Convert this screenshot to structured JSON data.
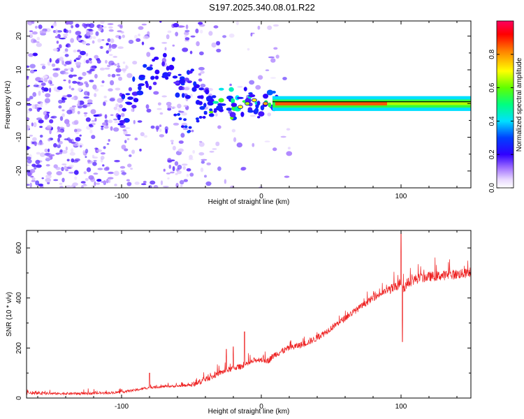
{
  "title": "S197.2025.340.08.01.R22",
  "chart_data": [
    {
      "type": "heatmap",
      "xlabel": "Height of straight line (km)",
      "ylabel": "Frequency (Hz)",
      "xlim": [
        -168,
        150
      ],
      "ylim": [
        -25,
        24.5
      ],
      "x_ticks": [
        -100,
        0,
        100
      ],
      "y_ticks": [
        -20,
        -10,
        0,
        10,
        20
      ],
      "colorbar": {
        "label": "Normalized spectral amplitude",
        "range": [
          0,
          1
        ],
        "ticks": [
          0.0,
          0.2,
          0.4,
          0.6,
          0.8
        ],
        "tick_labels": [
          "0.0",
          "0.2",
          "0.4",
          "0.6",
          "0.8"
        ],
        "colors": [
          "#ffffff",
          "#e8d8ff",
          "#a070ff",
          "#6a18f0",
          "#1a10ff",
          "#00d8ff",
          "#00ff80",
          "#80ff00",
          "#ffff00",
          "#ff9000",
          "#ff0000",
          "#ff0060"
        ]
      },
      "features": {
        "carrier_start_km": 10,
        "carrier_end_km": 150,
        "carrier_freq_hz": 0,
        "carrier_amplitude": 0.85,
        "transition_start_km": -100,
        "noise_region_end_km": -50
      }
    },
    {
      "type": "line",
      "xlabel": "Height of straight line (km)",
      "ylabel": "SNR (10 * v/v)",
      "xlim": [
        -168,
        150
      ],
      "ylim": [
        0,
        670
      ],
      "x_ticks": [
        -100,
        0,
        100
      ],
      "y_ticks": [
        0,
        200,
        400,
        600
      ],
      "line_color": "#ee2222",
      "series": [
        {
          "name": "SNR",
          "x": [
            -168,
            -150,
            -130,
            -110,
            -100,
            -90,
            -80,
            -70,
            -60,
            -50,
            -45,
            -40,
            -35,
            -30,
            -25,
            -20,
            -15,
            -10,
            -5,
            0,
            5,
            10,
            20,
            30,
            40,
            50,
            60,
            70,
            80,
            90,
            95,
            98,
            100,
            102,
            105,
            110,
            120,
            130,
            140,
            150
          ],
          "y": [
            20,
            18,
            18,
            20,
            24,
            32,
            42,
            46,
            48,
            52,
            62,
            75,
            85,
            100,
            110,
            120,
            125,
            135,
            150,
            155,
            150,
            175,
            200,
            215,
            240,
            280,
            320,
            360,
            400,
            430,
            440,
            450,
            470,
            440,
            460,
            475,
            485,
            490,
            495,
            500
          ]
        }
      ],
      "spikes": [
        {
          "x": -80,
          "y": 100
        },
        {
          "x": -25,
          "y": 195
        },
        {
          "x": -20,
          "y": 205
        },
        {
          "x": -12,
          "y": 265
        },
        {
          "x": 100,
          "y": 665
        },
        {
          "x": 101,
          "y": 225
        }
      ]
    }
  ]
}
